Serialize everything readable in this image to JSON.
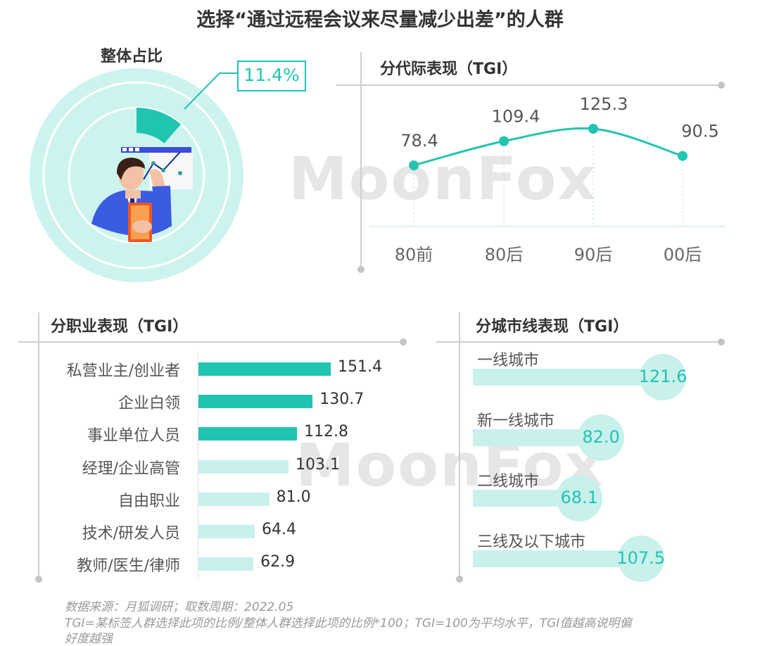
{
  "title": "选择“通过远程会议来尽量减少出差”的人群",
  "watermark": "MoonFox",
  "overall": {
    "title": "整体占比",
    "value_label": "11.4%",
    "value": 11.4
  },
  "generation": {
    "title": "分代际表现（TGI）"
  },
  "occupation": {
    "title": "分职业表现（TGI）"
  },
  "city": {
    "title": "分城市线表现（TGI）"
  },
  "chart_data": [
    {
      "type": "pie",
      "title": "整体占比",
      "values": [
        11.4
      ],
      "labels": [
        "11.4%"
      ]
    },
    {
      "type": "line",
      "title": "分代际表现（TGI）",
      "categories": [
        "80前",
        "80后",
        "90后",
        "00后"
      ],
      "values": [
        78.4,
        109.4,
        125.3,
        90.5
      ],
      "value_labels": [
        "78.4",
        "109.4",
        "125.3",
        "90.5"
      ]
    },
    {
      "type": "bar",
      "title": "分职业表现（TGI）",
      "categories": [
        "私营业主/创业者",
        "企业白领",
        "事业单位人员",
        "经理/企业高管",
        "自由职业",
        "技术/研发人员",
        "教师/医生/律师"
      ],
      "values": [
        151.4,
        130.7,
        112.8,
        103.1,
        81.0,
        64.4,
        62.9
      ],
      "value_labels": [
        "151.4",
        "130.7",
        "112.8",
        "103.1",
        "81.0",
        "64.4",
        "62.9"
      ],
      "highlight_count": 3,
      "colors": {
        "highlight": "#21c4b1",
        "normal": "#c8f1ec"
      }
    },
    {
      "type": "bar",
      "title": "分城市线表现（TGI）",
      "categories": [
        "一线城市",
        "新一线城市",
        "二线城市",
        "三线及以下城市"
      ],
      "values": [
        121.6,
        82.0,
        68.1,
        107.5
      ],
      "value_labels": [
        "121.6",
        "82.0",
        "68.1",
        "107.5"
      ]
    }
  ],
  "footnote": {
    "line1": "数据来源：月狐调研；取数周期：2022.05",
    "line2": "TGI=某标签人群选择此项的比例/整体人群选择此项的比例*100；TGI=100为平均水平，TGI值越高说明偏",
    "line3": "好度越强"
  },
  "colors": {
    "accent": "#21c4b1",
    "light": "#c8f1ec",
    "ring": "#cdf3ee",
    "axis": "#cfcfcf"
  }
}
